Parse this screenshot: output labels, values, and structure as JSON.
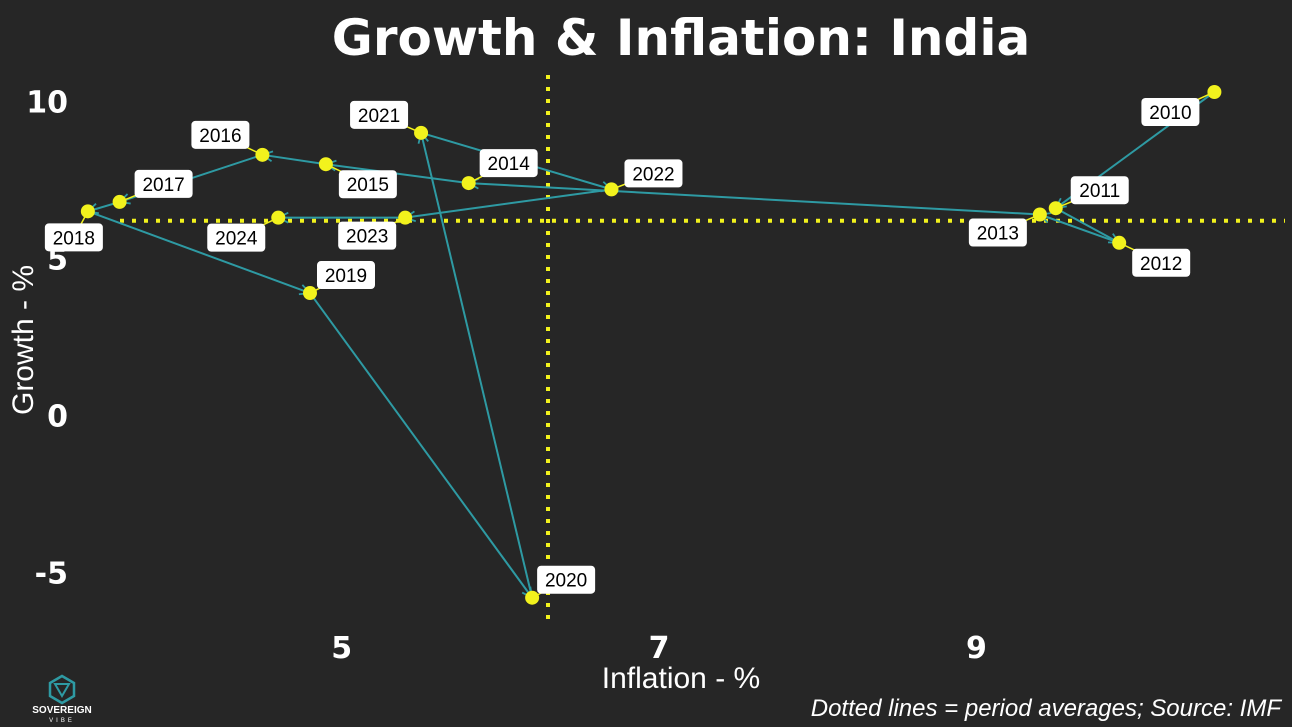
{
  "chart_data": {
    "type": "scatter",
    "title": "Growth & Inflation: India",
    "xlabel": "Inflation - %",
    "ylabel": "Growth - %",
    "xlim": [
      3.3,
      10.8
    ],
    "ylim": [
      -6.7,
      11.0
    ],
    "xticks": [
      5,
      7,
      9
    ],
    "yticks": [
      -5,
      0,
      5,
      10
    ],
    "caption": "Dotted lines = period averages; Source: IMF",
    "averages": {
      "inflation": 6.3,
      "growth": 6.2
    },
    "grid": false,
    "points": [
      {
        "year": "2010",
        "x": 10.5,
        "y": 10.3
      },
      {
        "year": "2011",
        "x": 9.5,
        "y": 6.6
      },
      {
        "year": "2012",
        "x": 9.9,
        "y": 5.5
      },
      {
        "year": "2013",
        "x": 9.4,
        "y": 6.4
      },
      {
        "year": "2014",
        "x": 5.8,
        "y": 7.4
      },
      {
        "year": "2015",
        "x": 4.9,
        "y": 8.0
      },
      {
        "year": "2016",
        "x": 4.5,
        "y": 8.3
      },
      {
        "year": "2017",
        "x": 3.6,
        "y": 6.8
      },
      {
        "year": "2018",
        "x": 3.4,
        "y": 6.5
      },
      {
        "year": "2019",
        "x": 4.8,
        "y": 3.9
      },
      {
        "year": "2020",
        "x": 6.2,
        "y": -5.8
      },
      {
        "year": "2021",
        "x": 5.5,
        "y": 9.0
      },
      {
        "year": "2022",
        "x": 6.7,
        "y": 7.2
      },
      {
        "year": "2023",
        "x": 5.4,
        "y": 6.3
      },
      {
        "year": "2024",
        "x": 4.6,
        "y": 6.3
      }
    ]
  },
  "colors": {
    "background": "#262626",
    "point": "#f2f21d",
    "path": "#2e9aa3",
    "average_line": "#f2f21d",
    "label_bg": "#ffffff",
    "text": "#ffffff"
  },
  "logo": {
    "name": "SOVEREIGN",
    "sub": "VIBE"
  }
}
